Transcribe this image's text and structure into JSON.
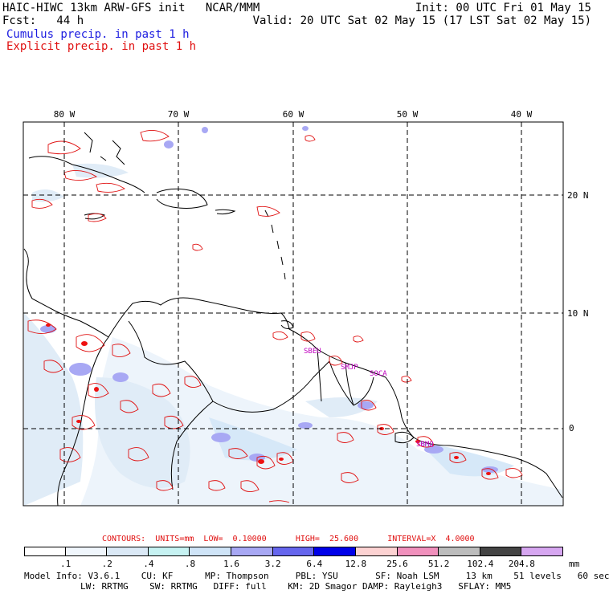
{
  "header": {
    "model_title": "HAIC-HIWC 13km ARW-GFS init   NCAR/MMM",
    "init_time": "Init: 00 UTC Fri 01 May 15",
    "forecast_hour": "Fcst:   44 h",
    "valid_time": "Valid: 20 UTC Sat 02 May 15 (17 LST Sat 02 May 15)",
    "legend_cumulus": "Cumulus precip. in past 1 h",
    "legend_explicit": "Explicit precip. in past 1 h",
    "cumulus_color": "#1c1ce0",
    "explicit_color": "#e01010"
  },
  "map": {
    "lon_labels": [
      "80 W",
      "70 W",
      "60 W",
      "50 W",
      "40 W"
    ],
    "lat_labels": [
      "20 N",
      "10 N",
      "0"
    ],
    "station_labels": [
      "SBEU",
      "SMJP",
      "SOCA",
      "SBMQ"
    ],
    "station_color": "#c000c0"
  },
  "contours": {
    "label": "CONTOURS:  UNITS=mm  LOW=  0.10000      HIGH=  25.600      INTERVAL=X  4.0000",
    "color": "#e01010"
  },
  "colorbar": {
    "units": "mm",
    "ticks": [
      ".1",
      ".2",
      ".4",
      ".8",
      "1.6",
      "3.2",
      "6.4",
      "12.8",
      "25.6",
      "51.2",
      "102.4",
      "204.8"
    ],
    "colors": [
      "#ffffff",
      "#f0f6fc",
      "#dbe9f6",
      "#c6f2f2",
      "#cfe4f7",
      "#a8a8f4",
      "#6666ee",
      "#0000e8",
      "#fcd2d2",
      "#f090bc",
      "#bcbcbc",
      "#444444",
      "#d6a6f0"
    ]
  },
  "model_info": {
    "line1": "Model Info: V3.6.1    CU: KF      MP: Thompson     PBL: YSU       SF: Noah LSM     13 km    51 levels   60 sec",
    "line2": "LW: RRTMG    SW: RRTMG   DIFF: full    KM: 2D Smagor DAMP: Rayleigh3   SFLAY: MM5"
  }
}
